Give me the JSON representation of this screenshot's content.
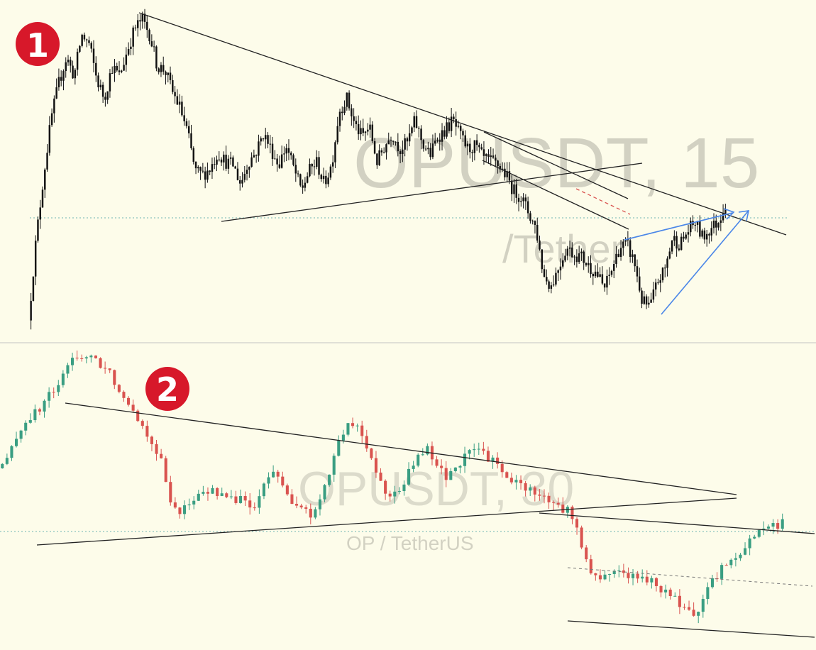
{
  "colors": {
    "background": "#fdfcea",
    "divider": "#d6d6d0",
    "trendline": "#222222",
    "candle_panel1": "#111111",
    "candle_up": "#3a9e82",
    "candle_down": "#d9534f",
    "badge": "#d7182a",
    "blue_arrow": "#4a86e8",
    "dotted_level": "#6fb4b1",
    "dashed_red": "#d9534f"
  },
  "badges": {
    "panel1": "1",
    "panel2": "2"
  },
  "watermarks": {
    "panel1_symbol": "OPUSDT, 15",
    "panel1_pair": "/Tether",
    "panel2_symbol": "OPUSDT, 30",
    "panel2_pair": "OP / TetherUS"
  },
  "chart_data": [
    {
      "type": "candlestick",
      "symbol": "OPUSDT",
      "interval": "15",
      "grid": false,
      "candle_color": "#111111",
      "price_path_relative": [
        0.03,
        0.29,
        0.49,
        0.67,
        0.78,
        0.86,
        0.8,
        0.93,
        0.9,
        0.79,
        0.73,
        0.83,
        0.8,
        0.88,
        0.95,
        0.98,
        0.93,
        0.83,
        0.82,
        0.75,
        0.7,
        0.62,
        0.5,
        0.49,
        0.51,
        0.56,
        0.53,
        0.52,
        0.46,
        0.53,
        0.56,
        0.62,
        0.57,
        0.52,
        0.58,
        0.51,
        0.44,
        0.5,
        0.53,
        0.46,
        0.52,
        0.69,
        0.73,
        0.65,
        0.61,
        0.64,
        0.53,
        0.58,
        0.62,
        0.57,
        0.59,
        0.66,
        0.59,
        0.55,
        0.61,
        0.63,
        0.66,
        0.61,
        0.57,
        0.58,
        0.54,
        0.53,
        0.52,
        0.49,
        0.44,
        0.42,
        0.37,
        0.32,
        0.17,
        0.14,
        0.2,
        0.26,
        0.24,
        0.23,
        0.2,
        0.18,
        0.13,
        0.19,
        0.26,
        0.27,
        0.21,
        0.09,
        0.07,
        0.15,
        0.19,
        0.29,
        0.27,
        0.31,
        0.34,
        0.29,
        0.32,
        0.34,
        0.4
      ],
      "annotations": [
        "descending trendline from the high",
        "symmetrical triangle",
        "descending channel",
        "rising wedge (blue) with upward arrow",
        "horizontal dotted level",
        "red dashed projection"
      ]
    },
    {
      "type": "candlestick",
      "symbol": "OPUSDT",
      "interval": "30",
      "grid": false,
      "up_color": "#3a9e82",
      "down_color": "#d9534f",
      "price_path_relative": [
        0.6,
        0.63,
        0.72,
        0.77,
        0.79,
        0.85,
        0.87,
        0.96,
        0.98,
        0.97,
        0.95,
        0.92,
        0.86,
        0.82,
        0.75,
        0.7,
        0.63,
        0.47,
        0.46,
        0.49,
        0.51,
        0.53,
        0.51,
        0.49,
        0.51,
        0.45,
        0.53,
        0.59,
        0.55,
        0.47,
        0.46,
        0.44,
        0.52,
        0.64,
        0.73,
        0.75,
        0.7,
        0.6,
        0.53,
        0.51,
        0.56,
        0.63,
        0.67,
        0.61,
        0.57,
        0.61,
        0.64,
        0.67,
        0.64,
        0.61,
        0.56,
        0.55,
        0.53,
        0.52,
        0.49,
        0.47,
        0.46,
        0.39,
        0.25,
        0.23,
        0.25,
        0.26,
        0.24,
        0.23,
        0.22,
        0.2,
        0.18,
        0.13,
        0.11,
        0.14,
        0.21,
        0.26,
        0.31,
        0.31,
        0.37,
        0.41,
        0.4,
        0.42
      ],
      "annotations": [
        "descending trendline from the high",
        "rising trendline from the lows forming a triangle",
        "lower channel line",
        "grey dashed mid line",
        "horizontal dotted level"
      ]
    }
  ]
}
